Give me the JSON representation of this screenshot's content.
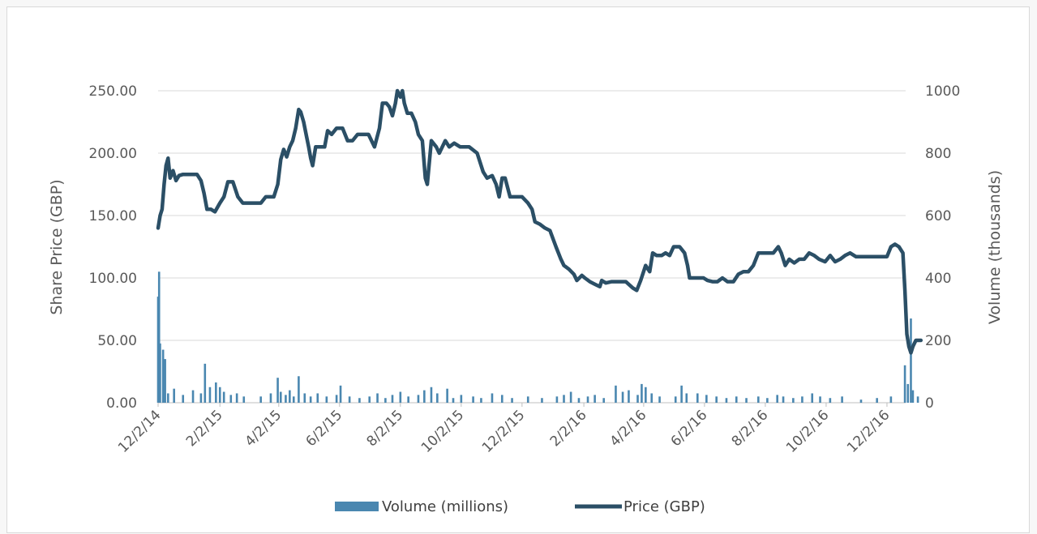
{
  "chart_data": {
    "type": "line",
    "title": "",
    "xlabel": "",
    "ylabel": "Share Price (GBP)",
    "y2label": "Volume (thousands)",
    "ylim": [
      0,
      250
    ],
    "y2lim": [
      0,
      1000
    ],
    "grid": true,
    "legend_position": "bottom",
    "colors": {
      "price": "#2b4f66",
      "volume": "#4a87b0",
      "grid": "#d9d9d9"
    },
    "x_tick_labels": [
      "12/2/14",
      "2/2/15",
      "4/2/15",
      "6/2/15",
      "8/2/15",
      "10/2/15",
      "12/2/15",
      "2/2/16",
      "4/2/16",
      "6/2/16",
      "8/2/16",
      "10/2/16",
      "12/2/16"
    ],
    "y_tick_labels": [
      "0.00",
      "50.00",
      "100.00",
      "150.00",
      "200.00",
      "250.00"
    ],
    "y2_tick_labels": [
      "0",
      "200",
      "400",
      "600",
      "800",
      "1000"
    ],
    "legend": [
      "Volume (millions)",
      "Price (GBP)"
    ],
    "series": [
      {
        "name": "Price (GBP)",
        "type": "line",
        "points": [
          [
            "12/2/14",
            140
          ],
          [
            "12/4/14",
            150
          ],
          [
            "12/6/14",
            155
          ],
          [
            "12/8/14",
            175
          ],
          [
            "12/10/14",
            190
          ],
          [
            "12/12/14",
            196
          ],
          [
            "12/14/14",
            180
          ],
          [
            "12/17/14",
            186
          ],
          [
            "12/20/14",
            178
          ],
          [
            "12/23/14",
            182
          ],
          [
            "12/27/14",
            183
          ],
          [
            "1/3/15",
            183
          ],
          [
            "1/10/15",
            183
          ],
          [
            "1/14/15",
            178
          ],
          [
            "1/17/15",
            168
          ],
          [
            "1/20/15",
            155
          ],
          [
            "1/24/15",
            155
          ],
          [
            "1/28/15",
            153
          ],
          [
            "2/2/15",
            160
          ],
          [
            "2/6/15",
            165
          ],
          [
            "2/10/15",
            177
          ],
          [
            "2/15/15",
            177
          ],
          [
            "2/20/15",
            165
          ],
          [
            "2/25/15",
            160
          ],
          [
            "3/5/15",
            160
          ],
          [
            "3/15/15",
            160
          ],
          [
            "3/20/15",
            165
          ],
          [
            "3/28/15",
            165
          ],
          [
            "4/1/15",
            175
          ],
          [
            "4/4/15",
            195
          ],
          [
            "4/7/15",
            203
          ],
          [
            "4/10/15",
            197
          ],
          [
            "4/13/15",
            205
          ],
          [
            "4/16/15",
            210
          ],
          [
            "4/19/15",
            220
          ],
          [
            "4/22/15",
            235
          ],
          [
            "4/24/15",
            233
          ],
          [
            "4/27/15",
            225
          ],
          [
            "4/30/15",
            213
          ],
          [
            "5/2/15",
            205
          ],
          [
            "5/4/15",
            196
          ],
          [
            "5/6/15",
            190
          ],
          [
            "5/9/15",
            205
          ],
          [
            "5/14/15",
            205
          ],
          [
            "5/18/15",
            205
          ],
          [
            "5/21/15",
            218
          ],
          [
            "5/25/15",
            215
          ],
          [
            "5/30/15",
            220
          ],
          [
            "6/5/15",
            220
          ],
          [
            "6/10/15",
            210
          ],
          [
            "6/15/15",
            210
          ],
          [
            "6/20/15",
            215
          ],
          [
            "6/25/15",
            215
          ],
          [
            "7/1/15",
            215
          ],
          [
            "7/7/15",
            205
          ],
          [
            "7/12/15",
            220
          ],
          [
            "7/15/15",
            240
          ],
          [
            "7/19/15",
            240
          ],
          [
            "7/22/15",
            237
          ],
          [
            "7/25/15",
            230
          ],
          [
            "7/28/15",
            240
          ],
          [
            "7/30/15",
            250
          ],
          [
            "8/2/15",
            245
          ],
          [
            "8/4/15",
            250
          ],
          [
            "8/6/15",
            240
          ],
          [
            "8/9/15",
            232
          ],
          [
            "8/13/15",
            232
          ],
          [
            "8/17/15",
            225
          ],
          [
            "8/20/15",
            215
          ],
          [
            "8/24/15",
            210
          ],
          [
            "8/27/15",
            180
          ],
          [
            "8/29/15",
            175
          ],
          [
            "9/2/15",
            210
          ],
          [
            "9/7/15",
            205
          ],
          [
            "9/10/15",
            200
          ],
          [
            "9/13/15",
            205
          ],
          [
            "9/16/15",
            210
          ],
          [
            "9/20/15",
            205
          ],
          [
            "9/25/15",
            208
          ],
          [
            "10/1/15",
            205
          ],
          [
            "10/10/15",
            205
          ],
          [
            "10/18/15",
            200
          ],
          [
            "10/24/15",
            185
          ],
          [
            "10/28/15",
            180
          ],
          [
            "11/2/15",
            182
          ],
          [
            "11/6/15",
            175
          ],
          [
            "11/9/15",
            165
          ],
          [
            "11/12/15",
            180
          ],
          [
            "11/15/15",
            180
          ],
          [
            "11/20/15",
            165
          ],
          [
            "11/25/15",
            165
          ],
          [
            "12/2/15",
            165
          ],
          [
            "12/8/15",
            160
          ],
          [
            "12/12/15",
            155
          ],
          [
            "12/15/15",
            145
          ],
          [
            "12/20/15",
            143
          ],
          [
            "12/25/15",
            140
          ],
          [
            "12/30/15",
            138
          ],
          [
            "1/5/16",
            125
          ],
          [
            "1/10/16",
            115
          ],
          [
            "1/13/16",
            110
          ],
          [
            "1/18/16",
            107
          ],
          [
            "1/23/16",
            103
          ],
          [
            "1/26/16",
            98
          ],
          [
            "1/31/16",
            102
          ],
          [
            "2/3/16",
            100
          ],
          [
            "2/8/16",
            97
          ],
          [
            "2/13/16",
            95
          ],
          [
            "2/18/16",
            93
          ],
          [
            "2/20/16",
            98
          ],
          [
            "2/24/16",
            96
          ],
          [
            "3/1/16",
            97
          ],
          [
            "3/8/16",
            97
          ],
          [
            "3/15/16",
            97
          ],
          [
            "3/22/16",
            92
          ],
          [
            "3/26/16",
            90
          ],
          [
            "3/30/16",
            98
          ],
          [
            "4/4/16",
            110
          ],
          [
            "4/8/16",
            105
          ],
          [
            "4/11/16",
            120
          ],
          [
            "4/15/16",
            118
          ],
          [
            "4/20/16",
            118
          ],
          [
            "4/24/16",
            120
          ],
          [
            "4/28/16",
            118
          ],
          [
            "5/2/16",
            125
          ],
          [
            "5/8/16",
            125
          ],
          [
            "5/13/16",
            120
          ],
          [
            "5/16/16",
            110
          ],
          [
            "5/18/16",
            100
          ],
          [
            "5/25/16",
            100
          ],
          [
            "6/1/16",
            100
          ],
          [
            "6/5/16",
            98
          ],
          [
            "6/10/16",
            97
          ],
          [
            "6/15/16",
            97
          ],
          [
            "6/20/16",
            100
          ],
          [
            "6/25/16",
            97
          ],
          [
            "7/1/16",
            97
          ],
          [
            "7/6/16",
            103
          ],
          [
            "7/11/16",
            105
          ],
          [
            "7/16/16",
            105
          ],
          [
            "7/21/16",
            110
          ],
          [
            "7/26/16",
            120
          ],
          [
            "7/31/16",
            120
          ],
          [
            "8/5/16",
            120
          ],
          [
            "8/10/16",
            120
          ],
          [
            "8/15/16",
            125
          ],
          [
            "8/18/16",
            120
          ],
          [
            "8/22/16",
            110
          ],
          [
            "8/26/16",
            115
          ],
          [
            "8/31/16",
            112
          ],
          [
            "9/5/16",
            115
          ],
          [
            "9/10/16",
            115
          ],
          [
            "9/15/16",
            120
          ],
          [
            "9/20/16",
            118
          ],
          [
            "9/25/16",
            115
          ],
          [
            "10/1/16",
            113
          ],
          [
            "10/6/16",
            118
          ],
          [
            "10/11/16",
            113
          ],
          [
            "10/16/16",
            115
          ],
          [
            "10/21/16",
            118
          ],
          [
            "10/26/16",
            120
          ],
          [
            "11/1/16",
            117
          ],
          [
            "11/8/16",
            117
          ],
          [
            "11/13/16",
            117
          ],
          [
            "11/18/16",
            117
          ],
          [
            "11/23/16",
            117
          ],
          [
            "11/28/16",
            117
          ],
          [
            "12/2/16",
            117
          ],
          [
            "12/6/16",
            125
          ],
          [
            "12/10/16",
            127
          ],
          [
            "12/14/16",
            125
          ],
          [
            "12/18/16",
            120
          ],
          [
            "12/20/16",
            90
          ],
          [
            "12/22/16",
            55
          ],
          [
            "12/24/16",
            45
          ],
          [
            "12/26/16",
            40
          ],
          [
            "12/28/16",
            45
          ],
          [
            "12/31/16",
            50
          ],
          [
            "1/5/17",
            50
          ]
        ]
      },
      {
        "name": "Volume (millions)",
        "type": "bar",
        "points": [
          [
            "12/2/14",
            340
          ],
          [
            "12/3/14",
            420
          ],
          [
            "12/4/14",
            190
          ],
          [
            "12/7/14",
            170
          ],
          [
            "12/9/14",
            140
          ],
          [
            "12/12/14",
            30
          ],
          [
            "12/18/14",
            45
          ],
          [
            "12/27/14",
            25
          ],
          [
            "1/6/15",
            40
          ],
          [
            "1/14/15",
            30
          ],
          [
            "1/18/15",
            125
          ],
          [
            "1/23/15",
            50
          ],
          [
            "1/29/15",
            65
          ],
          [
            "2/2/15",
            50
          ],
          [
            "2/6/15",
            35
          ],
          [
            "2/13/15",
            25
          ],
          [
            "2/19/15",
            30
          ],
          [
            "2/26/15",
            20
          ],
          [
            "3/15/15",
            20
          ],
          [
            "3/25/15",
            30
          ],
          [
            "4/1/15",
            80
          ],
          [
            "4/4/15",
            35
          ],
          [
            "4/9/15",
            25
          ],
          [
            "4/13/15",
            40
          ],
          [
            "4/17/15",
            20
          ],
          [
            "4/22/15",
            85
          ],
          [
            "4/28/15",
            30
          ],
          [
            "5/4/15",
            20
          ],
          [
            "5/11/15",
            30
          ],
          [
            "5/20/15",
            20
          ],
          [
            "5/30/15",
            25
          ],
          [
            "6/3/15",
            55
          ],
          [
            "6/12/15",
            20
          ],
          [
            "6/22/15",
            15
          ],
          [
            "7/2/15",
            20
          ],
          [
            "7/10/15",
            30
          ],
          [
            "7/18/15",
            15
          ],
          [
            "7/25/15",
            25
          ],
          [
            "8/2/15",
            35
          ],
          [
            "8/10/15",
            20
          ],
          [
            "8/20/15",
            25
          ],
          [
            "8/26/15",
            40
          ],
          [
            "9/2/15",
            50
          ],
          [
            "9/8/15",
            30
          ],
          [
            "9/18/15",
            45
          ],
          [
            "9/24/15",
            15
          ],
          [
            "10/2/15",
            25
          ],
          [
            "10/14/15",
            20
          ],
          [
            "10/22/15",
            15
          ],
          [
            "11/2/15",
            30
          ],
          [
            "11/12/15",
            25
          ],
          [
            "11/22/15",
            15
          ],
          [
            "12/8/15",
            20
          ],
          [
            "12/22/15",
            15
          ],
          [
            "1/6/16",
            20
          ],
          [
            "1/13/16",
            25
          ],
          [
            "1/20/16",
            35
          ],
          [
            "1/28/16",
            15
          ],
          [
            "2/6/16",
            20
          ],
          [
            "2/13/16",
            25
          ],
          [
            "2/22/16",
            15
          ],
          [
            "3/5/16",
            55
          ],
          [
            "3/12/16",
            35
          ],
          [
            "3/18/16",
            40
          ],
          [
            "3/27/16",
            25
          ],
          [
            "3/31/16",
            60
          ],
          [
            "4/4/16",
            50
          ],
          [
            "4/10/16",
            30
          ],
          [
            "4/18/16",
            20
          ],
          [
            "5/4/16",
            20
          ],
          [
            "5/10/16",
            55
          ],
          [
            "5/15/16",
            30
          ],
          [
            "5/26/16",
            30
          ],
          [
            "6/4/16",
            25
          ],
          [
            "6/14/16",
            20
          ],
          [
            "6/24/16",
            15
          ],
          [
            "7/4/16",
            20
          ],
          [
            "7/14/16",
            15
          ],
          [
            "7/26/16",
            20
          ],
          [
            "8/4/16",
            15
          ],
          [
            "8/14/16",
            25
          ],
          [
            "8/20/16",
            20
          ],
          [
            "8/30/16",
            15
          ],
          [
            "9/8/16",
            20
          ],
          [
            "9/18/16",
            30
          ],
          [
            "9/26/16",
            20
          ],
          [
            "10/6/16",
            15
          ],
          [
            "10/18/16",
            20
          ],
          [
            "11/6/16",
            10
          ],
          [
            "11/22/16",
            15
          ],
          [
            "12/6/16",
            20
          ],
          [
            "12/20/16",
            120
          ],
          [
            "12/23/16",
            60
          ],
          [
            "12/26/16",
            270
          ],
          [
            "12/28/16",
            40
          ],
          [
            "1/2/17",
            20
          ]
        ]
      }
    ]
  }
}
